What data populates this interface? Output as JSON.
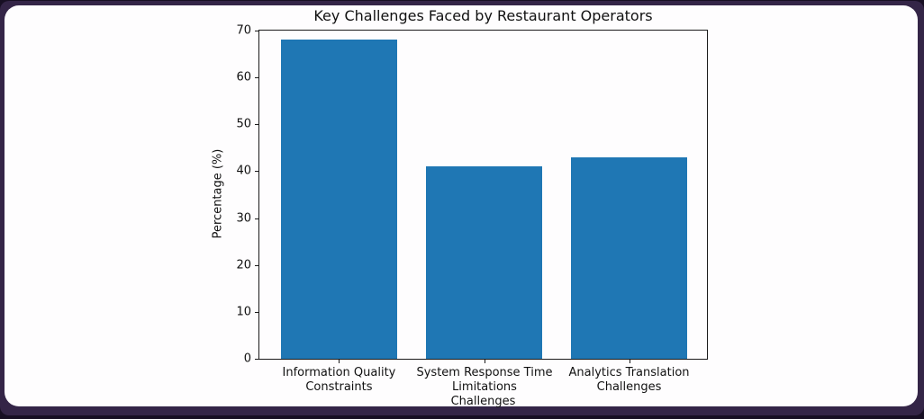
{
  "window": {
    "outer_background": "#170f23",
    "frame_color": "#342547",
    "canvas_color": "#fefdfe"
  },
  "chart_data": {
    "type": "bar",
    "title": "Key Challenges Faced by Restaurant Operators",
    "xlabel": "Challenges",
    "ylabel": "Percentage (%)",
    "categories": [
      "Information Quality\nConstraints",
      "System Response Time\nLimitations",
      "Analytics Translation\nChallenges"
    ],
    "values": [
      68,
      41,
      43
    ],
    "ylim": [
      0,
      70
    ],
    "yticks": [
      0,
      10,
      20,
      30,
      40,
      50,
      60,
      70
    ],
    "bar_color": "#1f77b4",
    "axis_color": "#1a1a1a",
    "grid": false,
    "legend": null
  }
}
